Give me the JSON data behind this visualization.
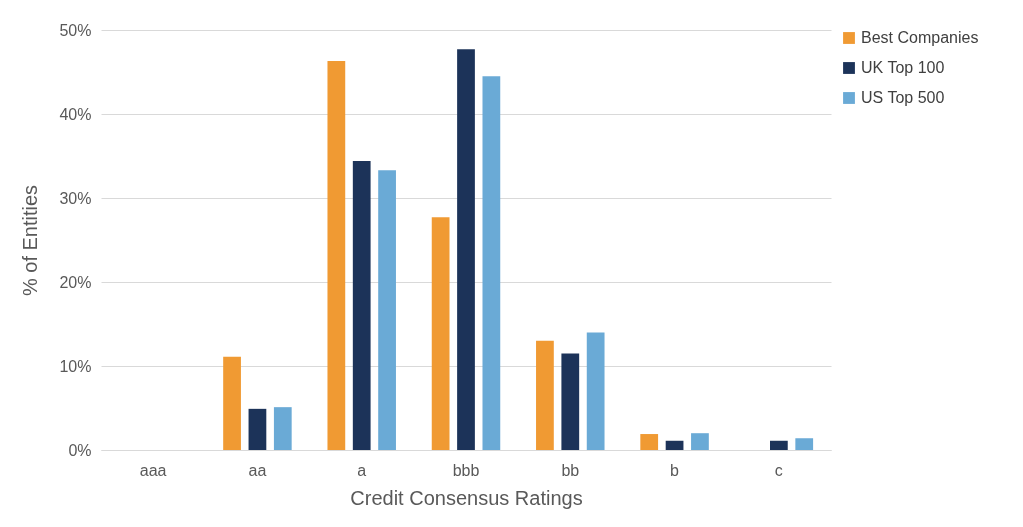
{
  "chart_data": {
    "type": "bar",
    "xlabel": "Credit Consensus Ratings",
    "ylabel": "% of Entities",
    "categories": [
      "aaa",
      "aa",
      "a",
      "bbb",
      "bb",
      "b",
      "c"
    ],
    "series": [
      {
        "name": "Best Companies",
        "color": "#f09a33",
        "values": [
          0,
          11.1,
          46.3,
          27.7,
          13.0,
          1.9,
          0
        ]
      },
      {
        "name": "UK Top 100",
        "color": "#1c3359",
        "values": [
          0,
          4.9,
          34.4,
          47.7,
          11.5,
          1.1,
          1.1
        ]
      },
      {
        "name": "US Top 500",
        "color": "#6aaad6",
        "values": [
          0,
          5.1,
          33.3,
          44.5,
          14.0,
          2.0,
          1.4
        ]
      }
    ],
    "ylim": [
      0,
      50
    ],
    "yticks": [
      {
        "value": 0,
        "label": "0%"
      },
      {
        "value": 10,
        "label": "10%"
      },
      {
        "value": 20,
        "label": "20%"
      },
      {
        "value": 30,
        "label": "30%"
      },
      {
        "value": 40,
        "label": "40%"
      },
      {
        "value": 50,
        "label": "50%"
      }
    ],
    "grid": "y",
    "legend": "right"
  }
}
